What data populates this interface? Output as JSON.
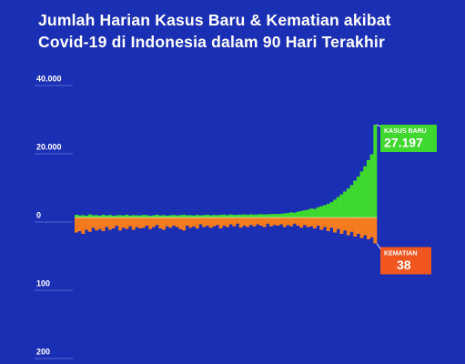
{
  "chart_data": {
    "type": "diverging_bar",
    "title": "Jumlah Harian Kasus Baru & Kematian akibat Covid-19 di Indonesia dalam 90 Hari Terakhir",
    "ylim": [
      0,
      40000
    ],
    "yticks": [
      0,
      {
        "value": 20000,
        "label": "20.000"
      },
      {
        "value": 40000,
        "label": "40.000"
      }
    ],
    "y2lim": [
      0,
      200
    ],
    "y2ticks": [
      100,
      200
    ],
    "series": [
      {
        "name": "KASUS BARU",
        "color": "#3fd82e",
        "values": [
          800,
          600,
          700,
          500,
          900,
          650,
          700,
          550,
          800,
          600,
          750,
          500,
          650,
          700,
          600,
          800,
          550,
          700,
          650,
          600,
          750,
          700,
          500,
          650,
          800,
          600,
          700,
          550,
          650,
          750,
          600,
          700,
          800,
          650,
          700,
          600,
          750,
          650,
          700,
          800,
          650,
          750,
          700,
          800,
          850,
          700,
          900,
          750,
          800,
          850,
          900,
          800,
          950,
          850,
          900,
          1000,
          900,
          950,
          1000,
          1050,
          1000,
          1100,
          1200,
          1300,
          1500,
          1400,
          1700,
          1900,
          2100,
          2300,
          2600,
          2500,
          3000,
          3300,
          3600,
          4000,
          4500,
          5200,
          6000,
          6800,
          7600,
          8500,
          9500,
          10800,
          12000,
          13500,
          15000,
          16800,
          18500,
          27197
        ],
        "value_labels": [
          null,
          null,
          null,
          null,
          null,
          null,
          null,
          null,
          null,
          null,
          null,
          null,
          null,
          null,
          null,
          null,
          null,
          null,
          null,
          null,
          null,
          null,
          null,
          null,
          null,
          null,
          null,
          null,
          null,
          null,
          null,
          null,
          null,
          null,
          null,
          null,
          null,
          null,
          null,
          null,
          null,
          null,
          null,
          null,
          null,
          null,
          null,
          null,
          null,
          null,
          null,
          null,
          null,
          null,
          null,
          null,
          null,
          null,
          null,
          null,
          null,
          null,
          null,
          null,
          null,
          null,
          null,
          null,
          null,
          null,
          null,
          null,
          null,
          null,
          null,
          null,
          null,
          null,
          null,
          null,
          null,
          null,
          null,
          null,
          null,
          null,
          null,
          null,
          null,
          "27.197"
        ]
      },
      {
        "name": "KEMATIAN",
        "color": "#f47b1e",
        "axis": "y2",
        "values": [
          22,
          20,
          24,
          18,
          21,
          15,
          19,
          17,
          20,
          14,
          18,
          16,
          12,
          19,
          15,
          17,
          13,
          18,
          14,
          16,
          15,
          12,
          17,
          14,
          11,
          16,
          18,
          13,
          15,
          12,
          14,
          17,
          19,
          12,
          15,
          13,
          16,
          10,
          14,
          12,
          15,
          13,
          11,
          16,
          12,
          14,
          10,
          13,
          9,
          15,
          12,
          14,
          11,
          13,
          10,
          12,
          14,
          9,
          13,
          11,
          12,
          10,
          14,
          11,
          13,
          9,
          12,
          15,
          11,
          14,
          13,
          16,
          12,
          18,
          14,
          20,
          15,
          22,
          17,
          24,
          19,
          26,
          21,
          28,
          24,
          30,
          26,
          32,
          29,
          38
        ]
      }
    ]
  }
}
